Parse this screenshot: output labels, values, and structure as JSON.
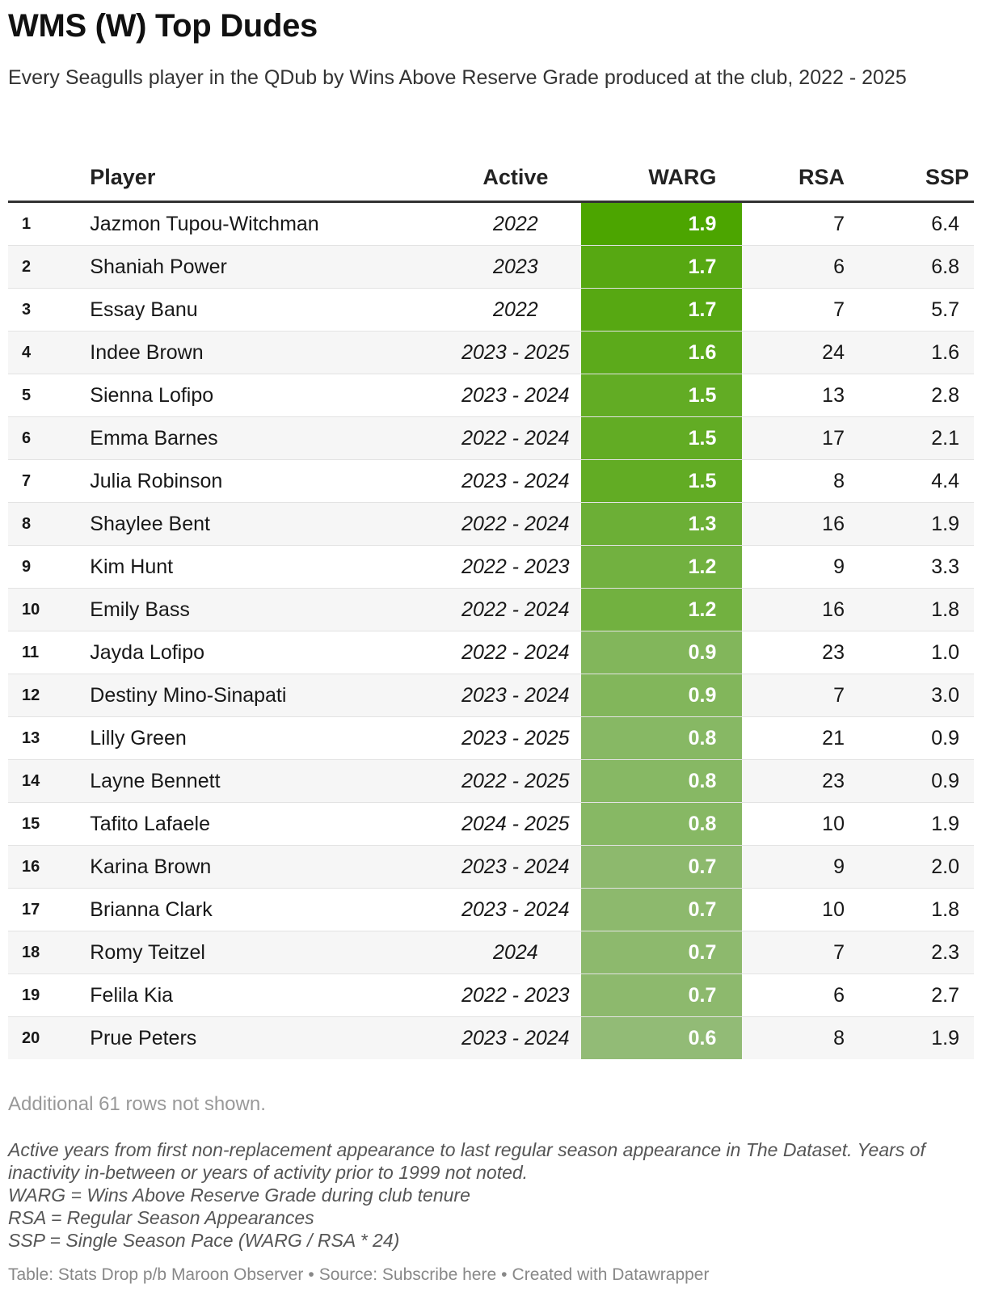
{
  "title": "WMS (W) Top Dudes",
  "subtitle": "Every Seagulls player in the QDub by Wins Above Reserve Grade produced at the club, 2022 - 2025",
  "table": {
    "columns": [
      "",
      "Player",
      "Active",
      "WARG",
      "RSA",
      "SSP"
    ],
    "rows": [
      {
        "rank": "1",
        "player": "Jazmon Tupou-Witchman",
        "active": "2022",
        "warg": "1.9",
        "rsa": "7",
        "ssp": "6.4"
      },
      {
        "rank": "2",
        "player": "Shaniah Power",
        "active": "2023",
        "warg": "1.7",
        "rsa": "6",
        "ssp": "6.8"
      },
      {
        "rank": "3",
        "player": "Essay Banu",
        "active": "2022",
        "warg": "1.7",
        "rsa": "7",
        "ssp": "5.7"
      },
      {
        "rank": "4",
        "player": "Indee Brown",
        "active": "2023 - 2025",
        "warg": "1.6",
        "rsa": "24",
        "ssp": "1.6"
      },
      {
        "rank": "5",
        "player": "Sienna Lofipo",
        "active": "2023 - 2024",
        "warg": "1.5",
        "rsa": "13",
        "ssp": "2.8"
      },
      {
        "rank": "6",
        "player": "Emma Barnes",
        "active": "2022 - 2024",
        "warg": "1.5",
        "rsa": "17",
        "ssp": "2.1"
      },
      {
        "rank": "7",
        "player": "Julia Robinson",
        "active": "2023 - 2024",
        "warg": "1.5",
        "rsa": "8",
        "ssp": "4.4"
      },
      {
        "rank": "8",
        "player": "Shaylee Bent",
        "active": "2022 - 2024",
        "warg": "1.3",
        "rsa": "16",
        "ssp": "1.9"
      },
      {
        "rank": "9",
        "player": "Kim Hunt",
        "active": "2022 - 2023",
        "warg": "1.2",
        "rsa": "9",
        "ssp": "3.3"
      },
      {
        "rank": "10",
        "player": "Emily Bass",
        "active": "2022 - 2024",
        "warg": "1.2",
        "rsa": "16",
        "ssp": "1.8"
      },
      {
        "rank": "11",
        "player": "Jayda Lofipo",
        "active": "2022 - 2024",
        "warg": "0.9",
        "rsa": "23",
        "ssp": "1.0"
      },
      {
        "rank": "12",
        "player": "Destiny Mino-Sinapati",
        "active": "2023 - 2024",
        "warg": "0.9",
        "rsa": "7",
        "ssp": "3.0"
      },
      {
        "rank": "13",
        "player": "Lilly Green",
        "active": "2023 - 2025",
        "warg": "0.8",
        "rsa": "21",
        "ssp": "0.9"
      },
      {
        "rank": "14",
        "player": "Layne Bennett",
        "active": "2022 - 2025",
        "warg": "0.8",
        "rsa": "23",
        "ssp": "0.9"
      },
      {
        "rank": "15",
        "player": "Tafito Lafaele",
        "active": "2024 - 2025",
        "warg": "0.8",
        "rsa": "10",
        "ssp": "1.9"
      },
      {
        "rank": "16",
        "player": "Karina Brown",
        "active": "2023 - 2024",
        "warg": "0.7",
        "rsa": "9",
        "ssp": "2.0"
      },
      {
        "rank": "17",
        "player": "Brianna Clark",
        "active": "2023 - 2024",
        "warg": "0.7",
        "rsa": "10",
        "ssp": "1.8"
      },
      {
        "rank": "18",
        "player": "Romy Teitzel",
        "active": "2024",
        "warg": "0.7",
        "rsa": "7",
        "ssp": "2.3"
      },
      {
        "rank": "19",
        "player": "Felila Kia",
        "active": "2022 - 2023",
        "warg": "0.7",
        "rsa": "6",
        "ssp": "2.7"
      },
      {
        "rank": "20",
        "player": "Prue Peters",
        "active": "2023 - 2024",
        "warg": "0.6",
        "rsa": "8",
        "ssp": "1.9"
      }
    ]
  },
  "chart_data": {
    "type": "table",
    "title": "WMS (W) Top Dudes",
    "subtitle": "Every Seagulls player in the QDub by Wins Above Reserve Grade produced at the club, 2022 - 2025",
    "columns": [
      "",
      "Player",
      "Active",
      "WARG",
      "RSA",
      "SSP"
    ],
    "heatmap_column": "WARG",
    "colors": {
      "warg_high": "#4ca500",
      "warg_mid": "#6aaf3c",
      "warg_low": "#92bb76",
      "header_rule": "#333333"
    }
  },
  "rows_note": "Additional 61 rows not shown.",
  "notes": [
    "Active years from first non-replacement appearance to last regular season appearance in The Dataset. Years of inactivity in-between or years of activity prior to 1999 not noted.",
    "WARG = Wins Above Reserve Grade during club tenure",
    "RSA = Regular Season Appearances",
    "SSP = Single Season Pace (WARG / RSA * 24)"
  ],
  "footer": {
    "table_credit": "Table: Stats Drop p/b Maroon Observer",
    "separator": "•",
    "source": "Source: Subscribe here",
    "created": "Created with Datawrapper"
  }
}
